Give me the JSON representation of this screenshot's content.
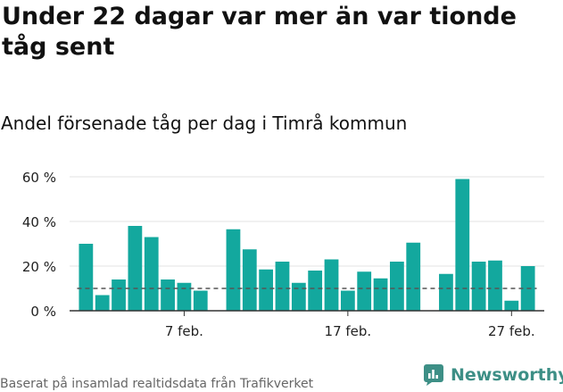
{
  "header": {
    "title": "Under 22 dagar var mer än var tionde tåg sent",
    "subtitle": "Andel försenade tåg per dag i Timrå kommun"
  },
  "footer": {
    "source": "Baserat på insamlad realtidsdata från Trafikverket",
    "brand": "Newsworthy"
  },
  "colors": {
    "bar": "#13a89e",
    "reference_line": "#555555",
    "grid": "#e3e3e3",
    "axis": "#333333",
    "brand": "#3d8f86"
  },
  "chart_data": {
    "type": "bar",
    "unit": "%",
    "x": [
      "2024-02-01",
      "2024-02-02",
      "2024-02-03",
      "2024-02-04",
      "2024-02-05",
      "2024-02-06",
      "2024-02-07",
      "2024-02-08",
      "2024-02-10",
      "2024-02-11",
      "2024-02-12",
      "2024-02-13",
      "2024-02-14",
      "2024-02-15",
      "2024-02-16",
      "2024-02-17",
      "2024-02-18",
      "2024-02-19",
      "2024-02-20",
      "2024-02-21",
      "2024-02-23",
      "2024-02-24",
      "2024-02-25",
      "2024-02-26",
      "2024-02-27",
      "2024-02-28"
    ],
    "values": [
      30,
      7,
      14,
      38,
      33,
      14,
      12.5,
      9,
      36.5,
      27.5,
      18.5,
      22,
      12.5,
      18,
      23,
      9,
      17.5,
      14.5,
      22,
      30.5,
      16.5,
      59,
      22,
      22.5,
      4.5,
      20
    ],
    "reference_value": 10,
    "ylim": [
      0,
      60
    ],
    "yticks": [
      0,
      20,
      40,
      60
    ],
    "ytick_labels": [
      "0 %",
      "20 %",
      "40 %",
      "60 %"
    ],
    "xtick_dates": [
      "2024-02-07",
      "2024-02-17",
      "2024-02-27"
    ],
    "xtick_labels": [
      "7 feb.",
      "17 feb.",
      "27 feb."
    ],
    "xlim": [
      "2024-01-31",
      "2024-02-29"
    ],
    "grid": true,
    "legend": false
  }
}
